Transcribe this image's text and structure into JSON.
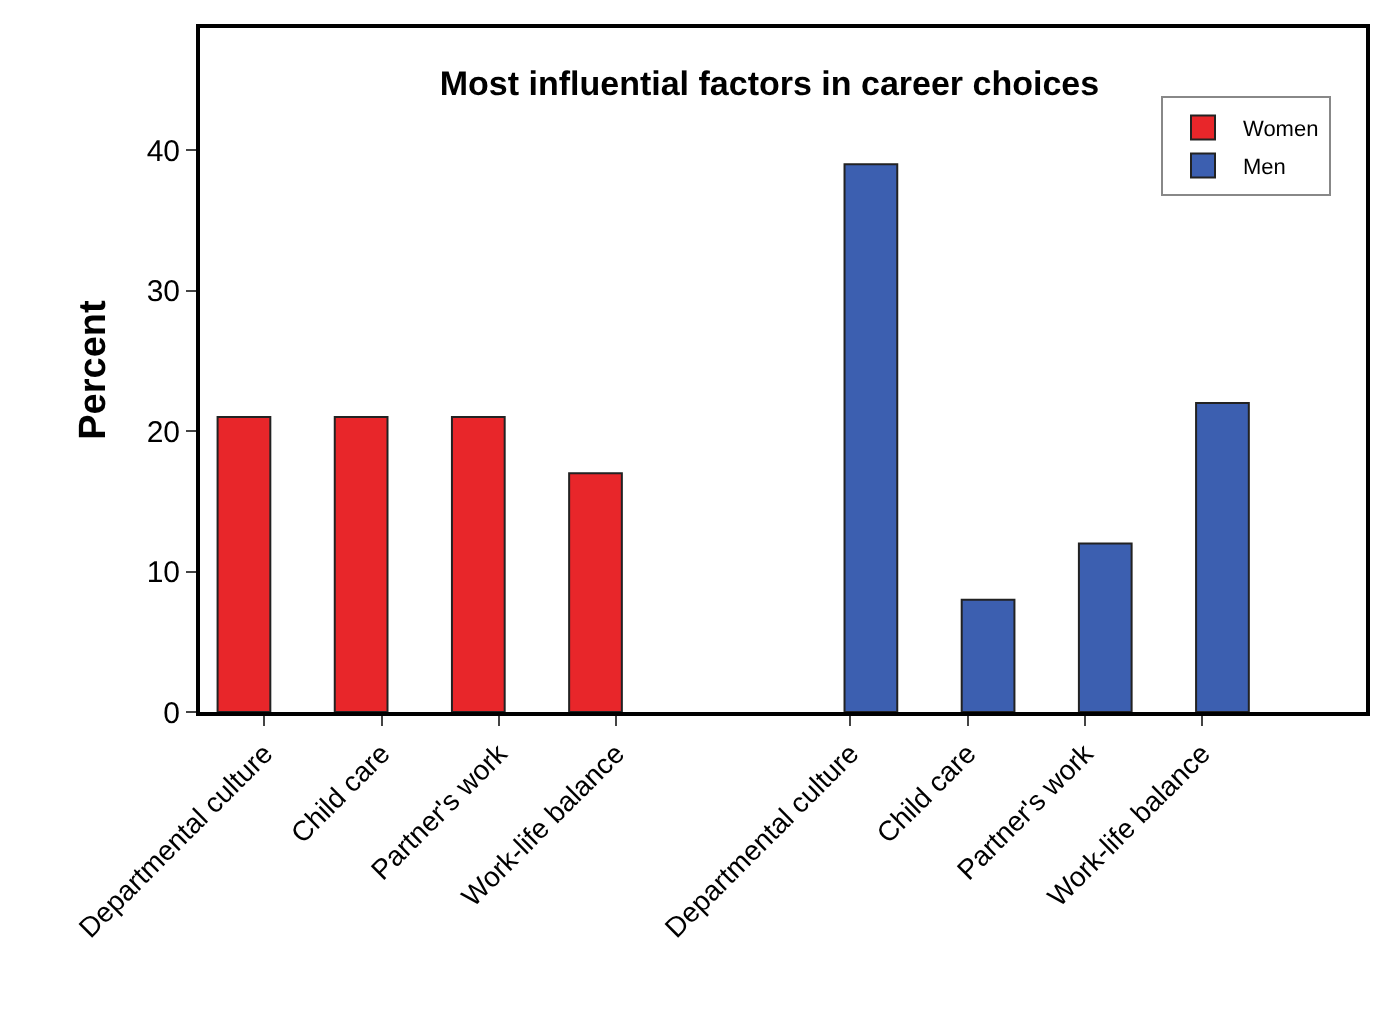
{
  "chart_data": {
    "type": "bar",
    "title": "Most influential factors in career choices",
    "ylabel": "Percent",
    "categories": [
      "Departmental culture",
      "Child care",
      "Partner's work",
      "Work-life balance",
      null,
      "Departmental culture",
      "Child care",
      "Partner's work",
      "Work-life balance"
    ],
    "series": [
      {
        "name": "Women",
        "color": "#e8262a",
        "values": [
          21,
          21,
          21,
          17,
          null,
          null,
          null,
          null,
          null
        ]
      },
      {
        "name": "Men",
        "color": "#3c5fb0",
        "values": [
          null,
          null,
          null,
          null,
          null,
          39,
          8,
          12,
          22
        ]
      }
    ],
    "ylim": [
      0,
      48.7
    ],
    "yticks": [
      0,
      10,
      20,
      30,
      40
    ],
    "legend": "top right"
  }
}
